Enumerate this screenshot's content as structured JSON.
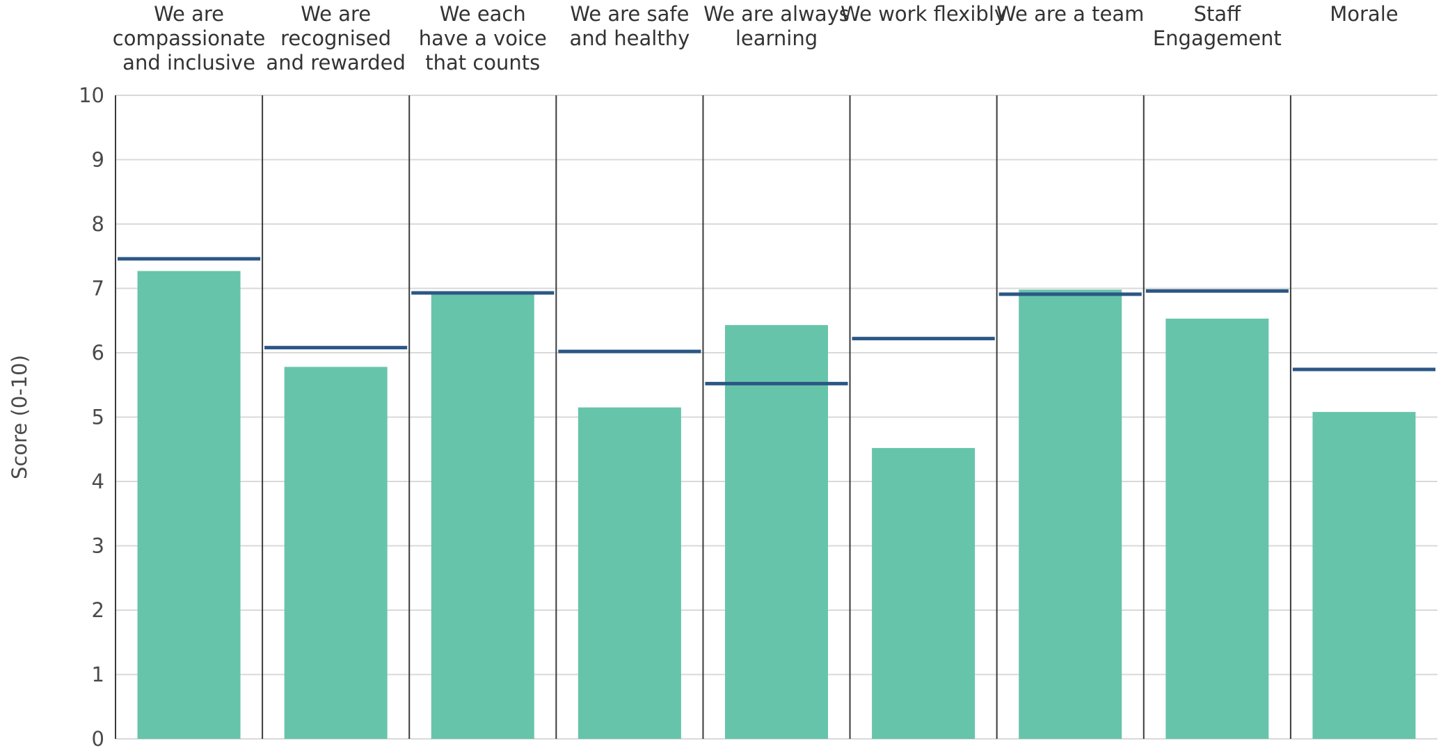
{
  "chart_data": {
    "type": "bar",
    "categories": [
      [
        "We are",
        "compassionate",
        "and inclusive"
      ],
      [
        "We are",
        "recognised",
        "and rewarded"
      ],
      [
        "We each",
        "have a voice",
        "that counts"
      ],
      [
        "We are safe",
        "and healthy"
      ],
      [
        "We are always",
        "learning"
      ],
      [
        "We work flexibly"
      ],
      [
        "We are a team"
      ],
      [
        "Staff",
        "Engagement"
      ],
      [
        "Morale"
      ]
    ],
    "series": [
      {
        "values": [
          7.27,
          5.78,
          6.93,
          5.15,
          6.43,
          4.52,
          6.98,
          6.53,
          5.08
        ]
      },
      {
        "values": [
          7.46,
          6.08,
          6.93,
          6.02,
          5.52,
          6.22,
          6.91,
          6.96,
          5.74
        ]
      }
    ],
    "ylabel": "Score (0-10)",
    "ylim": [
      0,
      10
    ],
    "yticks": [
      "0",
      "1",
      "2",
      "3",
      "4",
      "5",
      "6",
      "7",
      "8",
      "9",
      "10"
    ],
    "grid": true,
    "colors": {
      "bar": "#66c4aa",
      "line": "#2b5784",
      "grid": "#d9d9d9",
      "divider": "#3a3a3a"
    }
  }
}
